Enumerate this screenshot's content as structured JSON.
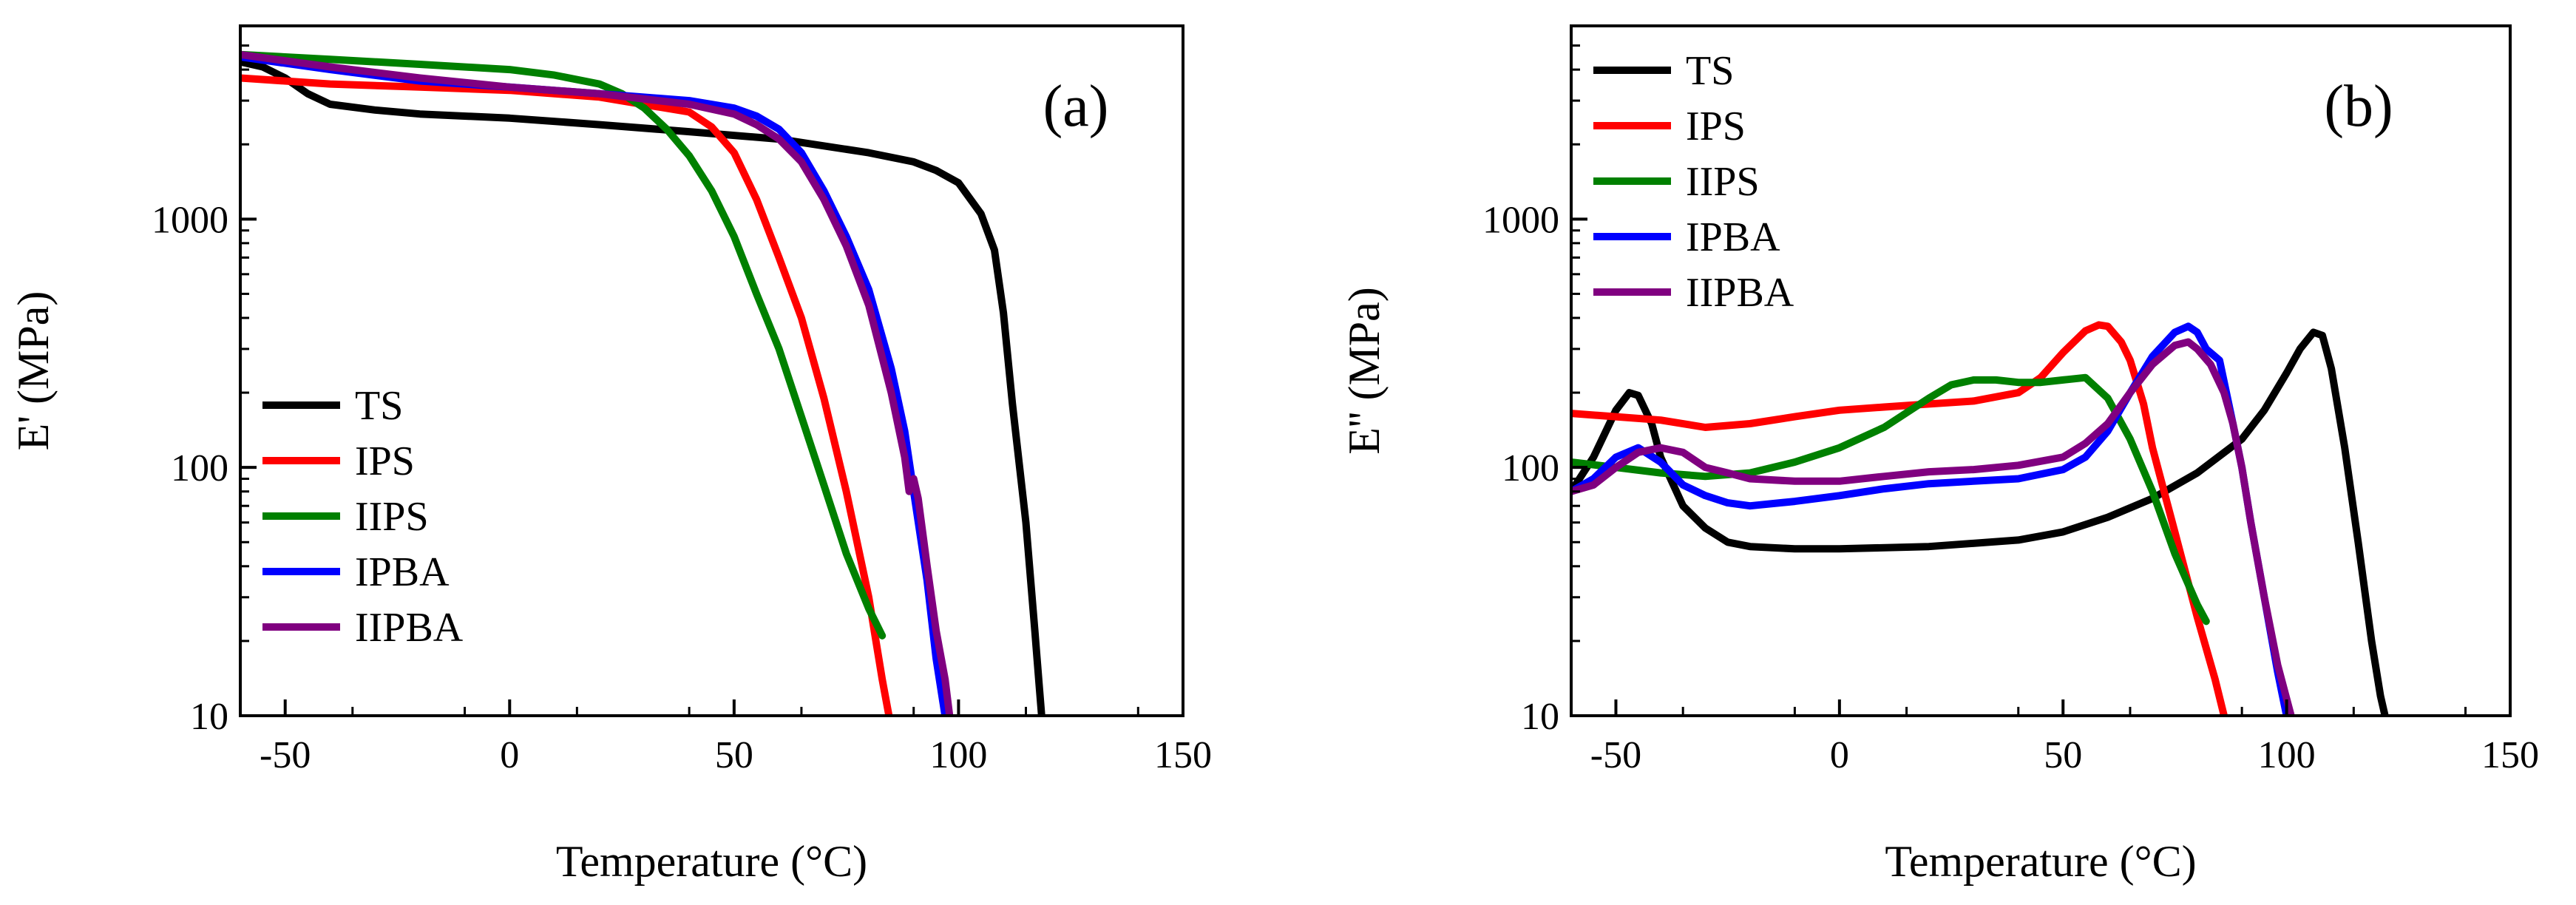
{
  "chart_data": [
    {
      "panel": "(a)",
      "type": "line",
      "title": "",
      "xlabel": "Temperature (°C)",
      "ylabel": "E' (MPa)",
      "xlim": [
        -60,
        150
      ],
      "ylim": [
        10,
        6000
      ],
      "yscale": "log",
      "xticks": [
        -50,
        0,
        50,
        100,
        150
      ],
      "xtick_labels": [
        "-50",
        "0",
        "50",
        "100",
        "150"
      ],
      "yticks": [
        10,
        100,
        1000
      ],
      "ytick_labels": [
        "10",
        "100",
        "1000"
      ],
      "grid": false,
      "legend_position": "bottom-left",
      "series": [
        {
          "name": "TS",
          "color": "#000000",
          "x": [
            -60,
            -55,
            -50,
            -45,
            -40,
            -30,
            -20,
            0,
            20,
            40,
            60,
            80,
            90,
            95,
            100,
            105,
            108,
            110,
            112,
            115,
            117,
            118,
            118.5
          ],
          "y": [
            4300,
            4100,
            3700,
            3200,
            2900,
            2750,
            2650,
            2550,
            2400,
            2250,
            2100,
            1850,
            1700,
            1570,
            1400,
            1050,
            750,
            420,
            180,
            60,
            22,
            13,
            10
          ]
        },
        {
          "name": "IPS",
          "color": "#ff0000",
          "x": [
            -60,
            -40,
            -20,
            0,
            20,
            40,
            45,
            50,
            55,
            60,
            65,
            70,
            75,
            80,
            83,
            84.5
          ],
          "y": [
            3700,
            3500,
            3400,
            3300,
            3100,
            2700,
            2350,
            1850,
            1200,
            700,
            400,
            190,
            80,
            30,
            14,
            10
          ]
        },
        {
          "name": "IIPS",
          "color": "#008000",
          "x": [
            -60,
            -40,
            -20,
            0,
            10,
            20,
            25,
            30,
            35,
            40,
            45,
            50,
            55,
            60,
            65,
            70,
            75,
            80,
            83
          ],
          "y": [
            4600,
            4400,
            4200,
            4000,
            3800,
            3500,
            3200,
            2800,
            2300,
            1800,
            1300,
            850,
            500,
            300,
            160,
            85,
            45,
            27,
            21
          ]
        },
        {
          "name": "IPBA",
          "color": "#0000ff",
          "x": [
            -60,
            -40,
            -20,
            0,
            20,
            40,
            50,
            55,
            60,
            65,
            70,
            75,
            80,
            85,
            88,
            90,
            93,
            95,
            97
          ],
          "y": [
            4500,
            4000,
            3600,
            3400,
            3200,
            3000,
            2800,
            2600,
            2300,
            1850,
            1300,
            850,
            520,
            250,
            140,
            80,
            35,
            17,
            10
          ]
        },
        {
          "name": "IIPBA",
          "color": "#800080",
          "x": [
            -60,
            -40,
            -20,
            0,
            20,
            40,
            50,
            55,
            60,
            65,
            70,
            75,
            80,
            85,
            88,
            89,
            90,
            91,
            93,
            95,
            97,
            98
          ],
          "y": [
            4600,
            4100,
            3700,
            3400,
            3200,
            2900,
            2650,
            2400,
            2100,
            1700,
            1200,
            780,
            450,
            200,
            110,
            80,
            90,
            75,
            40,
            22,
            14,
            10
          ]
        }
      ]
    },
    {
      "panel": "(b)",
      "type": "line",
      "title": "",
      "xlabel": "Temperature (°C)",
      "ylabel": "E'' (MPa)",
      "xlim": [
        -60,
        150
      ],
      "ylim": [
        10,
        6000
      ],
      "yscale": "log",
      "xticks": [
        -50,
        0,
        50,
        100,
        150
      ],
      "xtick_labels": [
        "-50",
        "0",
        "50",
        "100",
        "150"
      ],
      "yticks": [
        10,
        100,
        1000
      ],
      "ytick_labels": [
        "10",
        "100",
        "1000"
      ],
      "grid": false,
      "legend_position": "top-left",
      "series": [
        {
          "name": "TS",
          "color": "#000000",
          "x": [
            -60,
            -55,
            -50,
            -47,
            -45,
            -42,
            -40,
            -35,
            -30,
            -25,
            -20,
            -10,
            0,
            20,
            40,
            50,
            60,
            70,
            80,
            90,
            95,
            100,
            103,
            106,
            108,
            110,
            113,
            116,
            119,
            121,
            122
          ],
          "y": [
            80,
            110,
            170,
            200,
            195,
            150,
            110,
            70,
            57,
            50,
            48,
            47,
            47,
            48,
            51,
            55,
            63,
            75,
            95,
            130,
            170,
            240,
            300,
            350,
            340,
            250,
            120,
            50,
            20,
            12,
            10
          ]
        },
        {
          "name": "IPS",
          "color": "#ff0000",
          "x": [
            -60,
            -50,
            -40,
            -30,
            -20,
            -10,
            0,
            10,
            20,
            30,
            40,
            45,
            50,
            55,
            58,
            60,
            63,
            65,
            68,
            70,
            75,
            80,
            84,
            86
          ],
          "y": [
            165,
            160,
            155,
            145,
            150,
            160,
            170,
            175,
            180,
            185,
            200,
            230,
            290,
            355,
            375,
            370,
            320,
            270,
            180,
            120,
            55,
            25,
            14,
            10
          ]
        },
        {
          "name": "IIPS",
          "color": "#008000",
          "x": [
            -60,
            -50,
            -40,
            -30,
            -20,
            -10,
            0,
            10,
            20,
            25,
            30,
            35,
            40,
            45,
            50,
            55,
            60,
            65,
            70,
            75,
            80,
            82
          ],
          "y": [
            105,
            100,
            95,
            92,
            95,
            105,
            120,
            145,
            190,
            215,
            225,
            225,
            220,
            220,
            225,
            230,
            190,
            130,
            80,
            45,
            28,
            24
          ]
        },
        {
          "name": "IPBA",
          "color": "#0000ff",
          "x": [
            -60,
            -55,
            -50,
            -45,
            -40,
            -35,
            -30,
            -25,
            -20,
            -10,
            0,
            10,
            20,
            30,
            40,
            50,
            55,
            60,
            65,
            70,
            75,
            78,
            80,
            82,
            85,
            88,
            90,
            92,
            95,
            98,
            100
          ],
          "y": [
            80,
            90,
            110,
            120,
            105,
            85,
            77,
            72,
            70,
            73,
            77,
            82,
            86,
            88,
            90,
            98,
            110,
            140,
            200,
            280,
            350,
            370,
            350,
            300,
            270,
            150,
            100,
            60,
            30,
            15,
            10
          ]
        },
        {
          "name": "IIPBA",
          "color": "#800080",
          "x": [
            -60,
            -55,
            -50,
            -45,
            -40,
            -35,
            -30,
            -25,
            -20,
            -10,
            0,
            10,
            20,
            30,
            40,
            50,
            55,
            60,
            65,
            70,
            75,
            78,
            80,
            83,
            86,
            88,
            90,
            92,
            95,
            98,
            101
          ],
          "y": [
            80,
            85,
            100,
            115,
            120,
            115,
            100,
            95,
            90,
            88,
            88,
            92,
            96,
            98,
            102,
            110,
            125,
            150,
            200,
            260,
            310,
            320,
            300,
            260,
            200,
            150,
            100,
            60,
            30,
            16,
            10
          ]
        }
      ]
    }
  ]
}
